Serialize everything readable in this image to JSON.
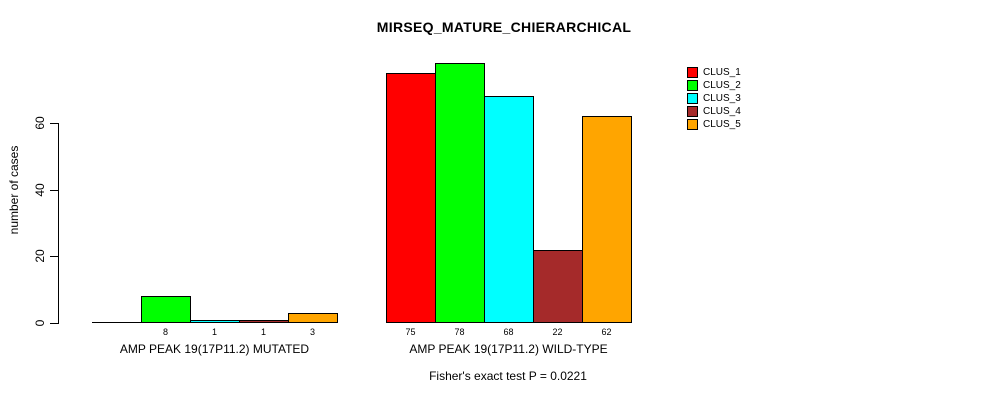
{
  "chart_data": {
    "type": "bar",
    "title": "MIRSEQ_MATURE_CHIERARCHICAL",
    "ylabel": "number of cases",
    "xlabel": "",
    "annotation": "Fisher's exact test P = 0.0221",
    "yticks": [
      0,
      20,
      40,
      60
    ],
    "ylim": [
      0,
      78
    ],
    "grid": false,
    "legend_position": "top-right",
    "clusters": [
      "CLUS_1",
      "CLUS_2",
      "CLUS_3",
      "CLUS_4",
      "CLUS_5"
    ],
    "colors": [
      "#FF0000",
      "#00FF00",
      "#00FFFF",
      "#A52A2A",
      "#FFA500"
    ],
    "legend": [
      {
        "label": "CLUS_1",
        "color": "#FF0000"
      },
      {
        "label": "CLUS_2",
        "color": "#00FF00"
      },
      {
        "label": "CLUS_3",
        "color": "#00FFFF"
      },
      {
        "label": "CLUS_4",
        "color": "#A52A2A"
      },
      {
        "label": "CLUS_5",
        "color": "#FFA500"
      }
    ],
    "groups": [
      {
        "label": "AMP PEAK 19(17P11.2) MUTATED",
        "values": [
          0,
          8,
          1,
          1,
          3
        ],
        "value_labels": [
          "",
          "8",
          "1",
          "1",
          "3"
        ]
      },
      {
        "label": "AMP PEAK 19(17P11.2) WILD-TYPE",
        "values": [
          75,
          78,
          68,
          22,
          62
        ],
        "value_labels": [
          "75",
          "78",
          "68",
          "22",
          "62"
        ]
      }
    ]
  }
}
